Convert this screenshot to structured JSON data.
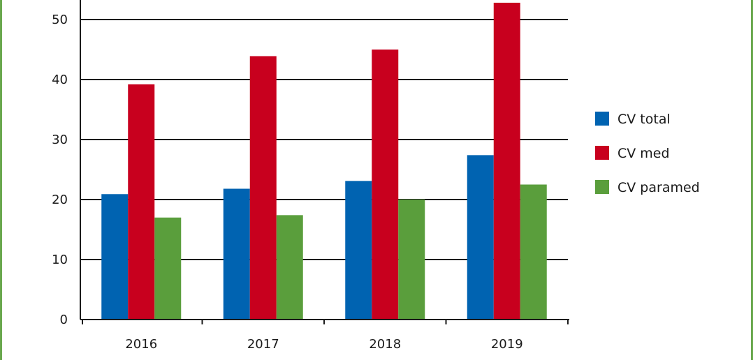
{
  "chart_data": {
    "type": "bar",
    "categories": [
      "2016",
      "2017",
      "2018",
      "2019"
    ],
    "series": [
      {
        "name": "CV total",
        "color": "#0063b1",
        "values": [
          20.9,
          21.8,
          23.1,
          27.4
        ]
      },
      {
        "name": "CV med",
        "color": "#c8001e",
        "values": [
          39.2,
          43.9,
          45.0,
          52.8
        ]
      },
      {
        "name": "CV paramed",
        "color": "#5a9e3c",
        "values": [
          17.0,
          17.4,
          20.0,
          22.5
        ]
      }
    ],
    "yticks": [
      0,
      10,
      20,
      30,
      40,
      50
    ],
    "ylim": [
      0,
      53
    ],
    "title": "",
    "xlabel": "",
    "ylabel": "",
    "grid": true,
    "legend_position": "right"
  },
  "colors": {
    "frame": "#6aa84f",
    "gridline": "#1a1a1a"
  }
}
